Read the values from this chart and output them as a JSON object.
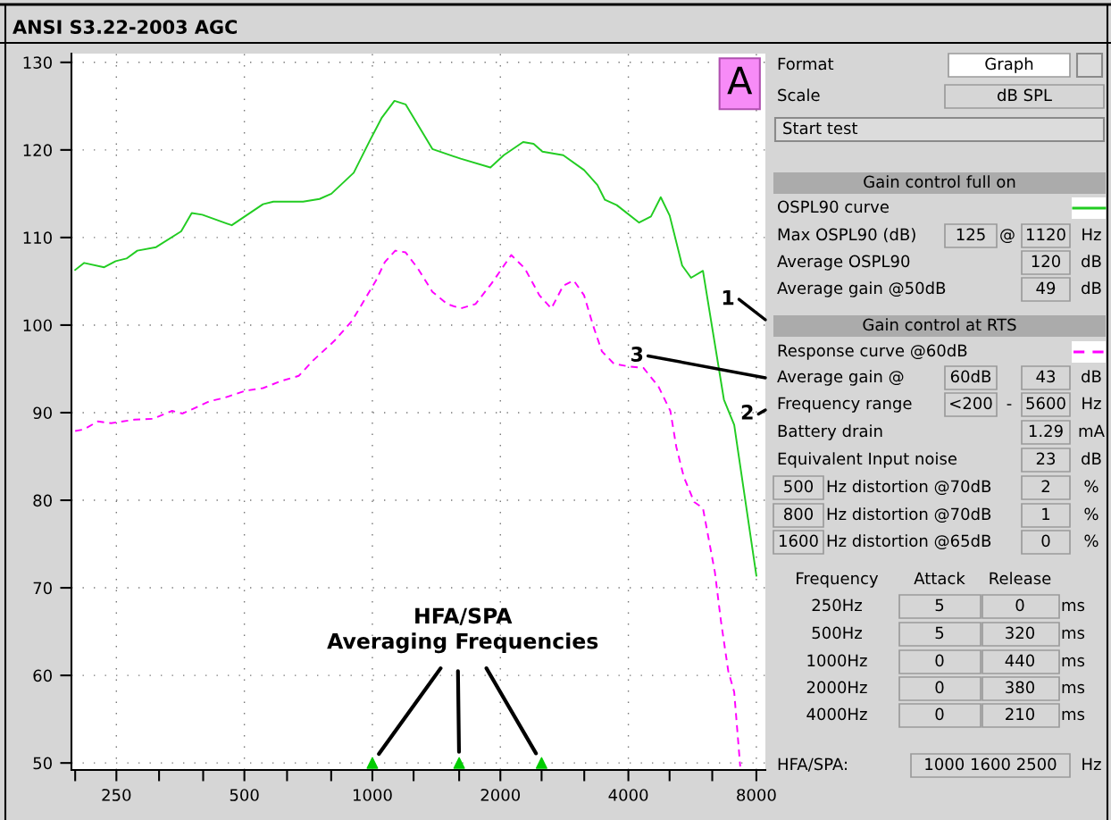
{
  "chart_data": {
    "type": "line",
    "title": "ANSI S3.22-2003 AGC",
    "log": "x",
    "grid": true,
    "legend": "right",
    "xlim": [
      196,
      8400
    ],
    "ylim": [
      49.2,
      131
    ],
    "xticks": [
      {
        "value": 200,
        "label": null
      },
      250,
      {
        "value": 315,
        "label": null
      },
      {
        "value": 400,
        "label": null
      },
      500,
      {
        "value": 630,
        "label": null
      },
      {
        "value": 800,
        "label": null
      },
      1000,
      {
        "value": 1250,
        "label": null
      },
      {
        "value": 1600,
        "label": null
      },
      2000,
      {
        "value": 2500,
        "label": null
      },
      {
        "value": 3150,
        "label": null
      },
      4000,
      {
        "value": 5000,
        "label": null
      },
      {
        "value": 6300,
        "label": null
      },
      8000
    ],
    "yticks": [
      50,
      60,
      70,
      80,
      90,
      100,
      110,
      120,
      130
    ],
    "series": [
      {
        "name": "OSPL90 curve",
        "type": "line",
        "color": "#22cc22",
        "line_style": "solid",
        "x": [
          200,
          210,
          234,
          249,
          264,
          280,
          310,
          355,
          376,
          398,
          467,
          553,
          585,
          687,
          751,
          801,
          904,
          987,
          1053,
          1127,
          1197,
          1384,
          1613,
          1895,
          2037,
          2262,
          2394,
          2512,
          2811,
          3147,
          3383,
          3523,
          3756,
          4240,
          4520,
          4767,
          5003,
          5353,
          5617,
          5990,
          6710,
          7095,
          8000
        ],
        "values": [
          106.3,
          107.1,
          106.6,
          107.3,
          107.6,
          108.5,
          108.9,
          110.7,
          112.8,
          112.6,
          111.4,
          113.8,
          114.1,
          114.1,
          114.4,
          115.0,
          117.4,
          121.1,
          123.7,
          125.6,
          125.2,
          120.1,
          119.0,
          118.0,
          119.4,
          120.9,
          120.7,
          119.8,
          119.4,
          117.7,
          116.0,
          114.3,
          113.7,
          111.7,
          112.4,
          114.6,
          112.5,
          106.8,
          105.4,
          106.2,
          91.5,
          88.6,
          71.4
        ]
      },
      {
        "name": "Response curve @60dB",
        "type": "line",
        "color": "#ff00ff",
        "line_style": "dashed",
        "x": [
          200,
          210,
          226,
          243,
          276,
          305,
          338,
          358,
          414,
          449,
          502,
          553,
          609,
          671,
          727,
          814,
          896,
          956,
          1020,
          1070,
          1132,
          1197,
          1278,
          1384,
          1500,
          1613,
          1748,
          1910,
          2121,
          2281,
          2471,
          2636,
          2811,
          2975,
          3147,
          3302,
          3466,
          3697,
          3976,
          4341,
          4707,
          5021,
          5185,
          5398,
          5712,
          5990,
          6390,
          6600,
          6870,
          7095,
          7330
        ],
        "values": [
          87.9,
          88.1,
          89.0,
          88.8,
          89.2,
          89.3,
          90.2,
          89.9,
          91.3,
          91.7,
          92.5,
          92.8,
          93.6,
          94.2,
          96.0,
          98.2,
          100.5,
          102.8,
          105.1,
          107.2,
          108.5,
          108.3,
          106.5,
          103.8,
          102.4,
          101.9,
          102.4,
          104.8,
          108.0,
          106.5,
          103.4,
          101.9,
          104.5,
          105.1,
          103.4,
          100.0,
          97.0,
          95.6,
          95.3,
          95.1,
          93.0,
          90.2,
          86.1,
          82.7,
          79.8,
          79.1,
          71.8,
          66.3,
          60.5,
          58.1,
          49.6
        ]
      },
      {
        "type": "scatter",
        "color": "#00cc00",
        "marker": "triangle",
        "x": [
          1000,
          1600,
          2500
        ],
        "values": [
          50,
          50,
          50
        ]
      }
    ],
    "annotations": [
      "A",
      "HFA/SPA\nAveraging Frequencies",
      "1",
      "2",
      "3",
      "Format",
      "Graph",
      "Scale",
      "dB SPL",
      "Start test",
      "Gain control full on",
      "Max OSPL90 (dB)",
      "125",
      "@",
      "1120",
      "Hz",
      "Average OSPL90",
      "120",
      "dB",
      "Average gain @50dB",
      "49",
      "dB",
      "Gain control at RTS",
      "Average gain @",
      "60dB",
      "43",
      "dB",
      "Frequency range",
      "<200",
      "-",
      "5600",
      "Hz",
      "Battery drain",
      "1.29",
      "mA",
      "Equivalent Input noise",
      "23",
      "dB",
      "500",
      "Hz distortion @70dB",
      "2",
      "%",
      "800",
      "Hz distortion @70dB",
      "1",
      "%",
      "1600",
      "Hz distortion @65dB",
      "0",
      "%",
      "Frequency",
      "Attack",
      "Release",
      "250Hz",
      "5",
      "0",
      "ms",
      "500Hz",
      "5",
      "320",
      "ms",
      "1000Hz",
      "0",
      "440",
      "ms",
      "2000Hz",
      "0",
      "380",
      "ms",
      "4000Hz",
      "0",
      "210",
      "ms",
      "HFA/SPA:",
      "1000 1600 2500",
      "Hz"
    ]
  }
}
